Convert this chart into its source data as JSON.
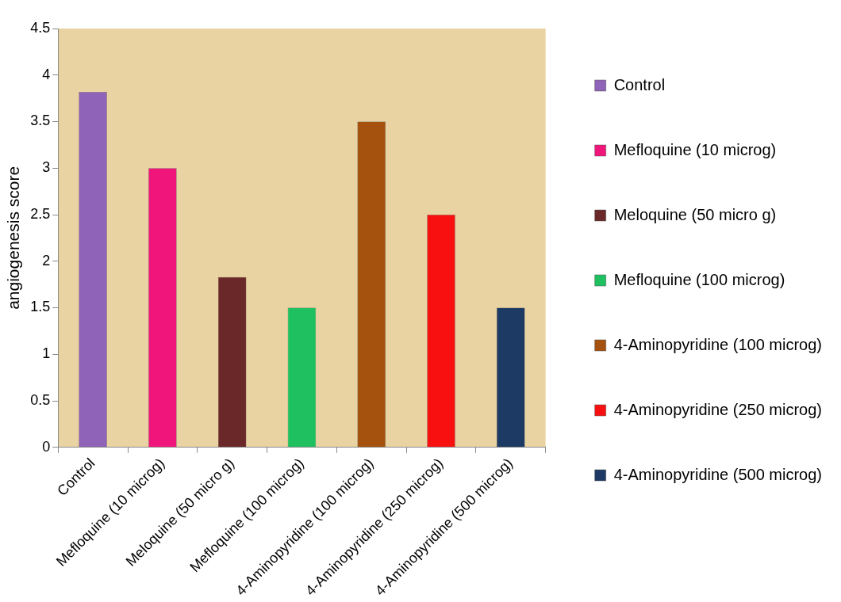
{
  "chart_data": {
    "type": "bar",
    "ylabel": "angiogenesis score",
    "categories": [
      "Control",
      "Mefloquine (10 microg)",
      "Meloquine (50 micro g)",
      "Mefloquine (100 microg)",
      "4-Aminopyridine (100 microg)",
      "4-Aminopyridine (250 microg)",
      "4-Aminopyridine (500 microg)"
    ],
    "series": [
      {
        "name": "Control",
        "color": "#8e63b8",
        "values": [
          3.82,
          null,
          null,
          null,
          null,
          null,
          null
        ]
      },
      {
        "name": "Mefloquine (10 microg)",
        "color": "#f0157a",
        "values": [
          null,
          3.0,
          null,
          null,
          null,
          null,
          null
        ]
      },
      {
        "name": "Meloquine (50 micro g)",
        "color": "#6b2828",
        "values": [
          null,
          null,
          1.83,
          null,
          null,
          null,
          null
        ]
      },
      {
        "name": "Mefloquine (100 microg)",
        "color": "#1fc060",
        "values": [
          null,
          null,
          null,
          1.5,
          null,
          null,
          null
        ]
      },
      {
        "name": "4-Aminopyridine (100 microg)",
        "color": "#a4520e",
        "values": [
          null,
          null,
          null,
          null,
          3.5,
          null,
          null
        ]
      },
      {
        "name": "4-Aminopyridine (250 microg)",
        "color": "#f81010",
        "values": [
          null,
          null,
          null,
          null,
          null,
          2.5,
          null
        ]
      },
      {
        "name": "4-Aminopyridine (500 microg)",
        "color": "#1d3a64",
        "values": [
          null,
          null,
          null,
          null,
          null,
          null,
          1.5
        ]
      }
    ],
    "ylim": [
      0,
      4.5
    ],
    "yticks": [
      0,
      0.5,
      1,
      1.5,
      2,
      2.5,
      3,
      3.5,
      4,
      4.5
    ],
    "legend": "right"
  }
}
